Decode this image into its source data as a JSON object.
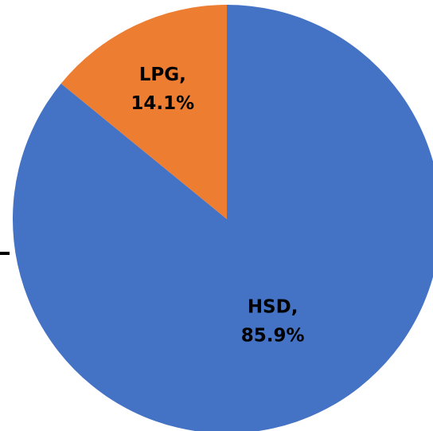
{
  "chart_data": {
    "type": "pie",
    "start_angle_deg": 0,
    "direction": "clockwise",
    "slices": [
      {
        "category": "HSD",
        "value": 85.9,
        "label_percent": "85.9%",
        "color": "#4472C4"
      },
      {
        "category": "LPG",
        "value": 14.1,
        "label_percent": "14.1%",
        "color": "#ED7D31"
      }
    ],
    "data_labels": {
      "show_category": true,
      "show_percent": true,
      "separator": ","
    },
    "legend": "none"
  }
}
